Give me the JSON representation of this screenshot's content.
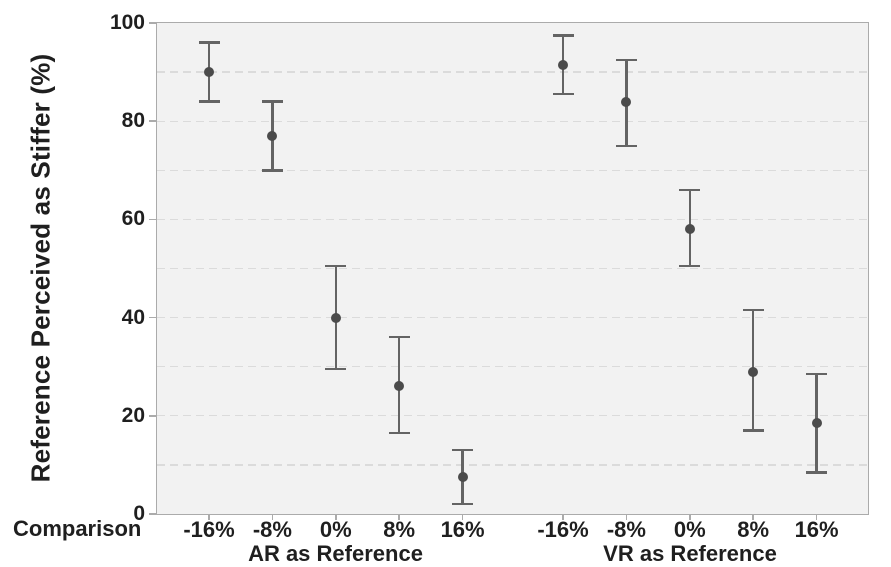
{
  "chart_data": {
    "type": "scatter",
    "subtype": "point-estimates-with-error-bars",
    "title": "",
    "ylabel": "Reference Perceived as Stiffer (%)",
    "xlabel_row_label": "Comparison",
    "ylim": [
      0,
      100
    ],
    "y_major_ticks": [
      0,
      20,
      40,
      60,
      80,
      100
    ],
    "y_gridlines_every": 10,
    "grid": "horizontal dashed",
    "legend": "none",
    "categories": [
      "-16%",
      "-8%",
      "0%",
      "8%",
      "16%"
    ],
    "groups": [
      {
        "label": "AR as Reference",
        "points": [
          {
            "x": "-16%",
            "mean": 90,
            "ci_low": 84,
            "ci_high": 96
          },
          {
            "x": "-8%",
            "mean": 77,
            "ci_low": 70,
            "ci_high": 84
          },
          {
            "x": "0%",
            "mean": 40,
            "ci_low": 29.5,
            "ci_high": 50.5
          },
          {
            "x": "8%",
            "mean": 26,
            "ci_low": 16.5,
            "ci_high": 36
          },
          {
            "x": "16%",
            "mean": 7.5,
            "ci_low": 2,
            "ci_high": 13
          }
        ]
      },
      {
        "label": "VR as Reference",
        "points": [
          {
            "x": "-16%",
            "mean": 91.5,
            "ci_low": 85.5,
            "ci_high": 97.5
          },
          {
            "x": "-8%",
            "mean": 84,
            "ci_low": 75,
            "ci_high": 92.5
          },
          {
            "x": "0%",
            "mean": 58,
            "ci_low": 50.5,
            "ci_high": 66
          },
          {
            "x": "8%",
            "mean": 29,
            "ci_low": 17,
            "ci_high": 41.5
          },
          {
            "x": "16%",
            "mean": 18.5,
            "ci_low": 8.5,
            "ci_high": 28.5
          }
        ]
      }
    ],
    "colors": {
      "point": "#4b4b4b",
      "error_bar": "#646464",
      "plot_background": "#f2f2f2",
      "gridline": "#dbdbdb",
      "axis_border": "#ababab",
      "text": "#1f1f1f"
    }
  }
}
